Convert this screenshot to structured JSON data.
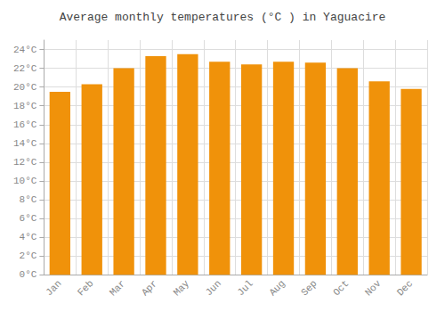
{
  "chart_data": {
    "type": "bar",
    "title": "Average monthly temperatures (°C ) in Yaguacire",
    "categories": [
      "Jan",
      "Feb",
      "Mar",
      "Apr",
      "May",
      "Jun",
      "Jul",
      "Aug",
      "Sep",
      "Oct",
      "Nov",
      "Dec"
    ],
    "values": [
      19.5,
      20.3,
      22.0,
      23.3,
      23.5,
      22.7,
      22.4,
      22.7,
      22.6,
      22.0,
      20.6,
      19.8
    ],
    "color": "#F0920A",
    "ylim": [
      0,
      25
    ],
    "yticks": [
      {
        "value": 0,
        "label": "0°C"
      },
      {
        "value": 2,
        "label": "2°C"
      },
      {
        "value": 4,
        "label": "4°C"
      },
      {
        "value": 6,
        "label": "6°C"
      },
      {
        "value": 8,
        "label": "8°C"
      },
      {
        "value": 10,
        "label": "10°C"
      },
      {
        "value": 12,
        "label": "12°C"
      },
      {
        "value": 14,
        "label": "14°C"
      },
      {
        "value": 16,
        "label": "16°C"
      },
      {
        "value": 18,
        "label": "18°C"
      },
      {
        "value": 20,
        "label": "20°C"
      },
      {
        "value": 22,
        "label": "22°C"
      },
      {
        "value": 24,
        "label": "24°C"
      }
    ],
    "grid": true
  }
}
